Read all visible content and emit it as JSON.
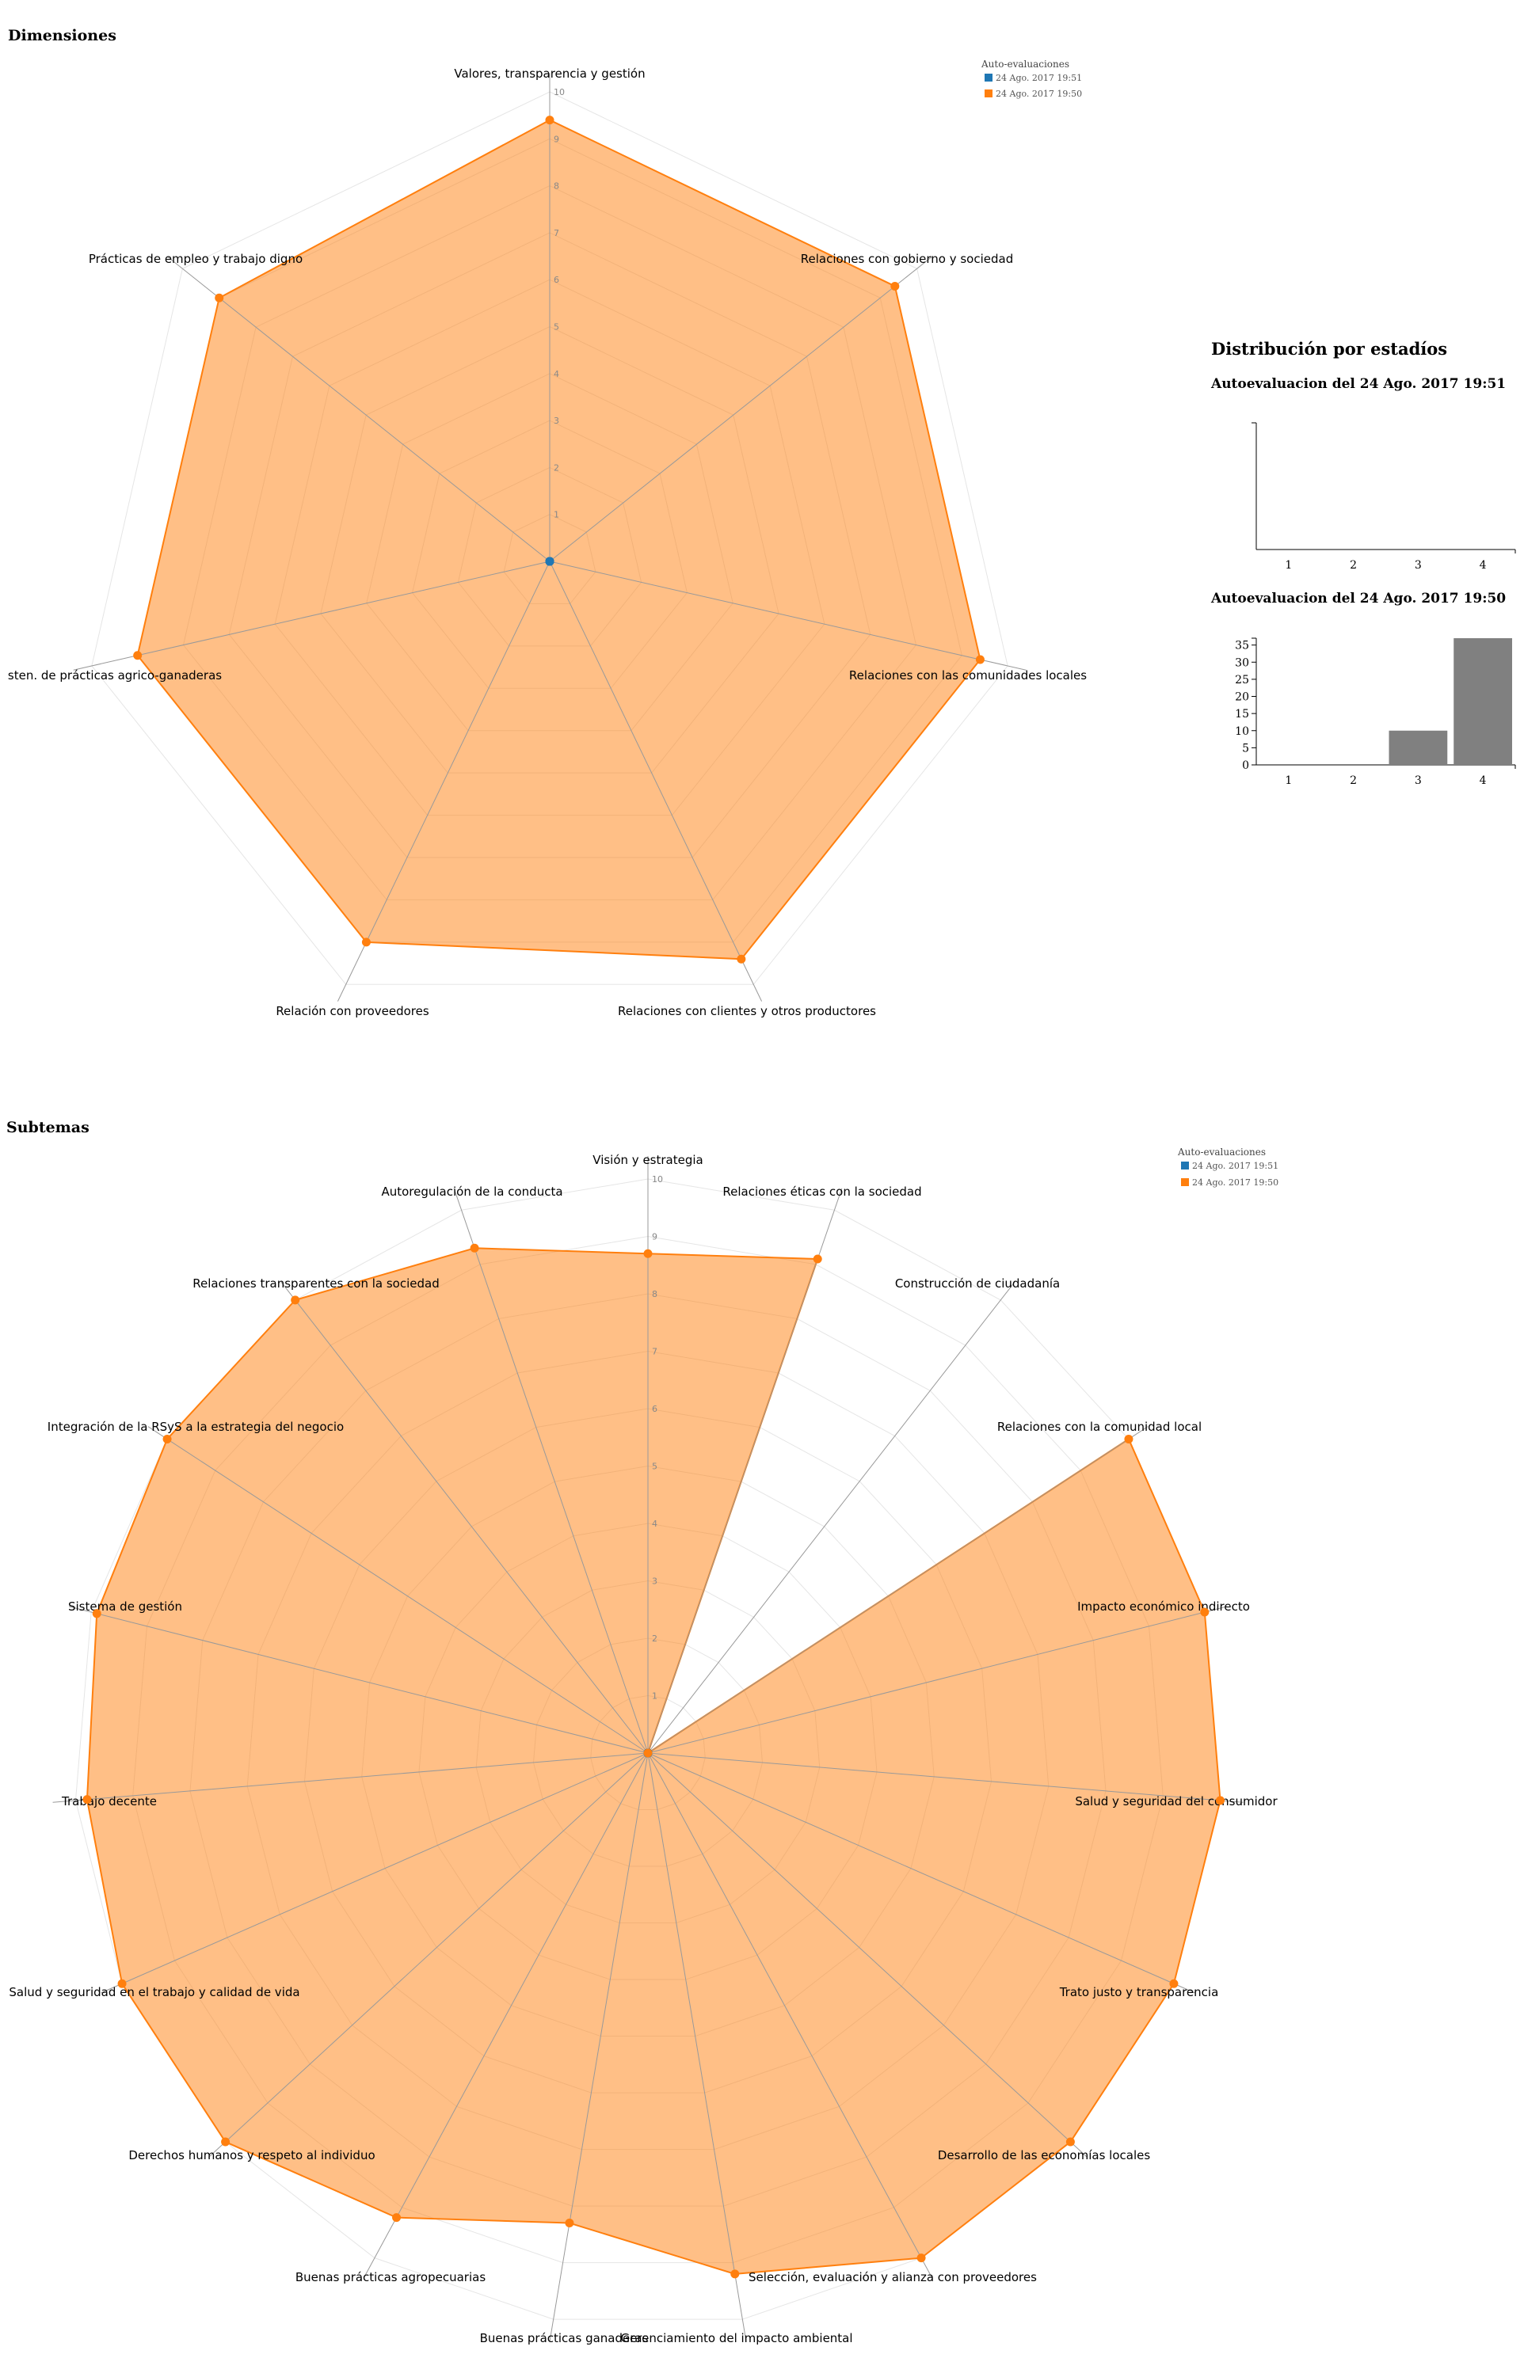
{
  "dimensiones": {
    "title": "Dimensiones",
    "legend": {
      "title": "Auto-evaluaciones",
      "items": [
        {
          "label": "24 Ago. 2017 19:51",
          "color": "#1f77b4"
        },
        {
          "label": "24 Ago. 2017 19:50",
          "color": "#ff7f0e"
        }
      ]
    }
  },
  "subtemas": {
    "title": "Subtemas",
    "legend": {
      "title": "Auto-evaluaciones",
      "items": [
        {
          "label": "24 Ago. 2017 19:51",
          "color": "#1f77b4"
        },
        {
          "label": "24 Ago. 2017 19:50",
          "color": "#ff7f0e"
        }
      ]
    }
  },
  "distribucion": {
    "title": "Distribución por estadíos",
    "charts": [
      {
        "subtitle": "Autoevaluacion del 24 Ago. 2017 19:51"
      },
      {
        "subtitle": "Autoevaluacion del 24 Ago. 2017 19:50"
      }
    ]
  },
  "chart_data": [
    {
      "type": "radar",
      "title": "Dimensiones",
      "range": [
        0,
        10
      ],
      "ticks": [
        1,
        2,
        3,
        4,
        5,
        6,
        7,
        8,
        9,
        10
      ],
      "axes": [
        "Valores, transparencia y gestión",
        "Relaciones con gobierno y sociedad",
        "Relaciones con las comunidades locales",
        "Relaciones con clientes y otros productores",
        "Relación con proveedores",
        "sten. de prácticas agrico-ganaderas",
        "Prácticas de empleo y trabajo digno"
      ],
      "series": [
        {
          "name": "24 Ago. 2017 19:51",
          "color": "#1f77b4",
          "values": [
            0,
            0,
            0,
            0,
            0,
            0,
            0
          ]
        },
        {
          "name": "24 Ago. 2017 19:50",
          "color": "#ff7f0e",
          "values": [
            9.4,
            9.4,
            9.4,
            9.4,
            9.0,
            9.0,
            9.0
          ]
        }
      ]
    },
    {
      "type": "radar",
      "title": "Subtemas",
      "range": [
        0,
        10
      ],
      "ticks": [
        1,
        2,
        3,
        4,
        5,
        6,
        7,
        8,
        9,
        10
      ],
      "axes": [
        "Visión y estrategia",
        "Relaciones éticas con la sociedad",
        "Construcción de ciudadanía",
        "Relaciones con la comunidad local",
        "Impacto económico indirecto",
        "Salud y seguridad del consumidor",
        "Trato justo y transparencia",
        "Desarrollo de las economías locales",
        "Selección, evaluación y alianza con proveedores",
        "Gerenciamiento del impacto ambiental",
        "Buenas prácticas ganaderas",
        "Buenas prácticas agropecuarias",
        "Derechos humanos y respeto al individuo",
        "Salud y seguridad en el trabajo y calidad de vida",
        "Trabajo decente",
        "Sistema de gestión",
        "Integración de la RSyS a la estrategia del negocio",
        "Relaciones transparentes con la sociedad",
        "Autoregulación de la conducta"
      ],
      "series": [
        {
          "name": "24 Ago. 2017 19:51",
          "color": "#1f77b4",
          "values": [
            0,
            0,
            0,
            0,
            0,
            0,
            0,
            0,
            0,
            0,
            0,
            0,
            0,
            0,
            0,
            0,
            0,
            0,
            0
          ]
        },
        {
          "name": "24 Ago. 2017 19:50",
          "color": "#ff7f0e",
          "values": [
            8.7,
            9.1,
            0,
            10,
            10,
            10,
            10,
            10,
            10,
            9.2,
            8.3,
            9.2,
            10,
            10,
            9.8,
            9.9,
            10,
            10,
            9.3
          ]
        }
      ]
    },
    {
      "type": "bar",
      "title": "Autoevaluacion del 24 Ago. 2017 19:51",
      "categories": [
        "1",
        "2",
        "3",
        "4"
      ],
      "values": [
        0,
        0,
        0,
        0
      ]
    },
    {
      "type": "bar",
      "title": "Autoevaluacion del 24 Ago. 2017 19:50",
      "categories": [
        "1",
        "2",
        "3",
        "4"
      ],
      "values": [
        0,
        0,
        10,
        37
      ],
      "yticks": [
        0,
        5,
        10,
        15,
        20,
        25,
        30,
        35
      ],
      "ylim": [
        0,
        37
      ]
    }
  ]
}
